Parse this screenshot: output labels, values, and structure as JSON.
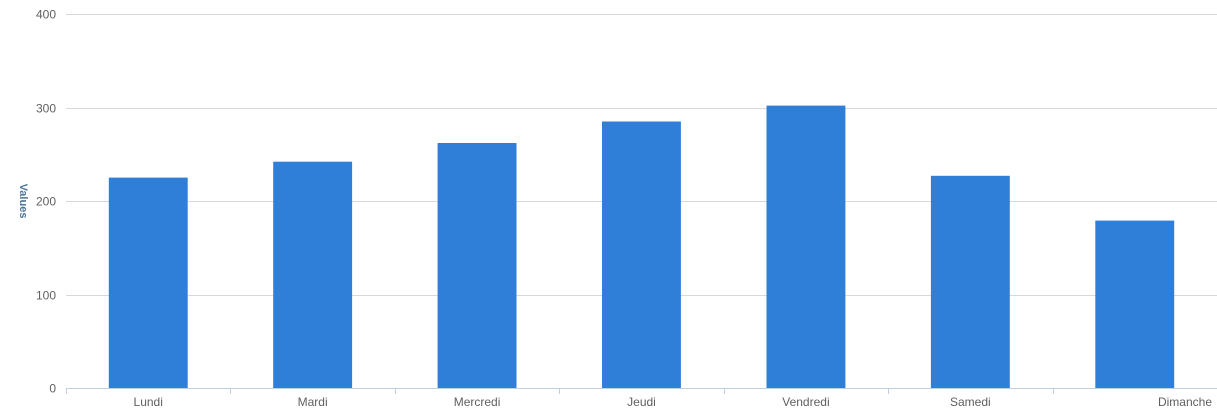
{
  "chart_data": {
    "type": "bar",
    "title": "",
    "xlabel": "",
    "ylabel": "Values",
    "categories": [
      "Lundi",
      "Mardi",
      "Mercredi",
      "Jeudi",
      "Vendredi",
      "Samedi",
      "Dimanche"
    ],
    "series": [
      {
        "values": [
          225,
          242,
          262,
          285,
          302,
          227,
          179
        ]
      }
    ],
    "ylim": [
      0,
      400
    ],
    "yticks": [
      0,
      100,
      200,
      300,
      400
    ],
    "grid": true,
    "legend": "none",
    "colors": {
      "bar": "#2f7ed8",
      "grid": "#d8d8d8",
      "axis_line": "#c0d0e0",
      "axis_title": "#4d759e",
      "tick_label": "#606060"
    }
  }
}
